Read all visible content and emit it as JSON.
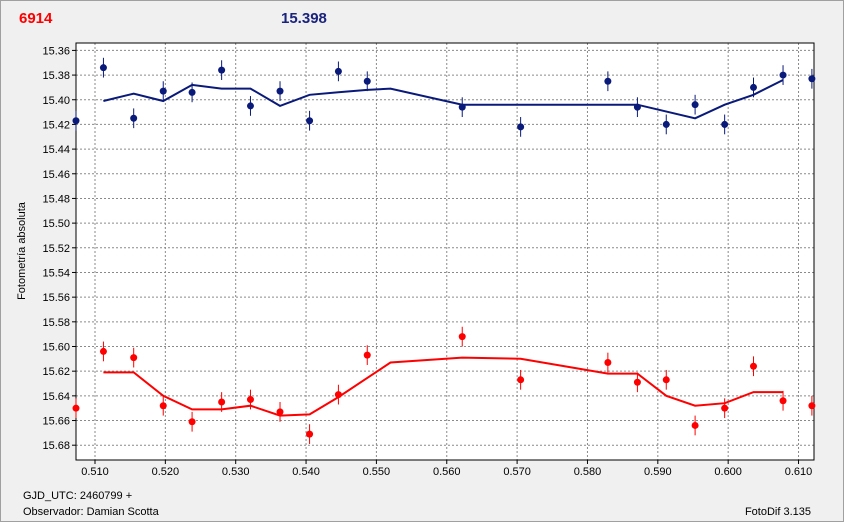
{
  "header": {
    "left_value": "6914",
    "right_value": "15.398"
  },
  "footer": {
    "gjd": "GJD_UTC: 2460799 +",
    "observer": "Observador: Damian Scotta",
    "version": "FotoDif 3.135"
  },
  "colors": {
    "blue": "#0a1a7a",
    "red": "#ff0000",
    "grid": "#8a8a8a"
  },
  "chart_data": {
    "type": "scatter",
    "xlabel": "",
    "ylabel": "Fotometría absoluta",
    "xlim": [
      0.5073,
      0.6122
    ],
    "ylim": [
      15.692,
      15.354
    ],
    "y_inverted": true,
    "grid": true,
    "xticks": [
      0.51,
      0.52,
      0.53,
      0.54,
      0.55,
      0.56,
      0.57,
      0.58,
      0.59,
      0.6,
      0.61
    ],
    "xtick_labels": [
      "0.510",
      "0.520",
      "0.530",
      "0.540",
      "0.550",
      "0.560",
      "0.570",
      "0.580",
      "0.590",
      "0.600",
      "0.610"
    ],
    "yticks": [
      15.36,
      15.38,
      15.4,
      15.42,
      15.44,
      15.46,
      15.48,
      15.5,
      15.52,
      15.54,
      15.56,
      15.58,
      15.6,
      15.62,
      15.64,
      15.66,
      15.68
    ],
    "ytick_labels": [
      "15.36",
      "15.38",
      "15.40",
      "15.42",
      "15.44",
      "15.46",
      "15.48",
      "15.50",
      "15.52",
      "15.54",
      "15.56",
      "15.58",
      "15.60",
      "15.62",
      "15.64",
      "15.66",
      "15.68"
    ],
    "series": [
      {
        "color": "#0a1a7a",
        "points": [
          {
            "x": 0.5073,
            "y": 15.417
          },
          {
            "x": 0.5112,
            "y": 15.374
          },
          {
            "x": 0.5155,
            "y": 15.415
          },
          {
            "x": 0.5197,
            "y": 15.393
          },
          {
            "x": 0.5238,
            "y": 15.394
          },
          {
            "x": 0.528,
            "y": 15.376
          },
          {
            "x": 0.5321,
            "y": 15.405
          },
          {
            "x": 0.5363,
            "y": 15.393
          },
          {
            "x": 0.5405,
            "y": 15.417
          },
          {
            "x": 0.5446,
            "y": 15.377
          },
          {
            "x": 0.5487,
            "y": 15.385
          },
          {
            "x": 0.5622,
            "y": 15.406
          },
          {
            "x": 0.5705,
            "y": 15.422
          },
          {
            "x": 0.5829,
            "y": 15.385
          },
          {
            "x": 0.5871,
            "y": 15.406
          },
          {
            "x": 0.5912,
            "y": 15.42
          },
          {
            "x": 0.5953,
            "y": 15.404
          },
          {
            "x": 0.5995,
            "y": 15.42
          },
          {
            "x": 0.6036,
            "y": 15.39
          },
          {
            "x": 0.6078,
            "y": 15.38
          },
          {
            "x": 0.6119,
            "y": 15.383
          }
        ],
        "errors": [
          0.008,
          0.008,
          0.008,
          0.008,
          0.008,
          0.008,
          0.008,
          0.008,
          0.008,
          0.008,
          0.008,
          0.008,
          0.008,
          0.008,
          0.008,
          0.008,
          0.008,
          0.008,
          0.008,
          0.008,
          0.008
        ],
        "line": [
          {
            "x": 0.5112,
            "y": 15.401
          },
          {
            "x": 0.5155,
            "y": 15.395
          },
          {
            "x": 0.5197,
            "y": 15.401
          },
          {
            "x": 0.5238,
            "y": 15.388
          },
          {
            "x": 0.528,
            "y": 15.391
          },
          {
            "x": 0.5321,
            "y": 15.391
          },
          {
            "x": 0.5363,
            "y": 15.405
          },
          {
            "x": 0.5405,
            "y": 15.396
          },
          {
            "x": 0.5446,
            "y": 15.394
          },
          {
            "x": 0.5487,
            "y": 15.392
          },
          {
            "x": 0.552,
            "y": 15.391
          },
          {
            "x": 0.5622,
            "y": 15.404
          },
          {
            "x": 0.5705,
            "y": 15.404
          },
          {
            "x": 0.5829,
            "y": 15.404
          },
          {
            "x": 0.5871,
            "y": 15.404
          },
          {
            "x": 0.5953,
            "y": 15.415
          },
          {
            "x": 0.5995,
            "y": 15.404
          },
          {
            "x": 0.6036,
            "y": 15.396
          },
          {
            "x": 0.6078,
            "y": 15.384
          }
        ]
      },
      {
        "color": "#ff0000",
        "points": [
          {
            "x": 0.5073,
            "y": 15.65
          },
          {
            "x": 0.5112,
            "y": 15.604
          },
          {
            "x": 0.5155,
            "y": 15.609
          },
          {
            "x": 0.5197,
            "y": 15.648
          },
          {
            "x": 0.5238,
            "y": 15.661
          },
          {
            "x": 0.528,
            "y": 15.645
          },
          {
            "x": 0.5321,
            "y": 15.643
          },
          {
            "x": 0.5363,
            "y": 15.653
          },
          {
            "x": 0.5405,
            "y": 15.671
          },
          {
            "x": 0.5446,
            "y": 15.639
          },
          {
            "x": 0.5487,
            "y": 15.607
          },
          {
            "x": 0.5622,
            "y": 15.592
          },
          {
            "x": 0.5705,
            "y": 15.627
          },
          {
            "x": 0.5829,
            "y": 15.613
          },
          {
            "x": 0.5871,
            "y": 15.629
          },
          {
            "x": 0.5912,
            "y": 15.627
          },
          {
            "x": 0.5953,
            "y": 15.664
          },
          {
            "x": 0.5995,
            "y": 15.65
          },
          {
            "x": 0.6036,
            "y": 15.616
          },
          {
            "x": 0.6078,
            "y": 15.644
          },
          {
            "x": 0.6119,
            "y": 15.648
          }
        ],
        "errors": [
          0.008,
          0.008,
          0.008,
          0.008,
          0.008,
          0.008,
          0.008,
          0.008,
          0.008,
          0.008,
          0.008,
          0.008,
          0.008,
          0.008,
          0.008,
          0.008,
          0.008,
          0.008,
          0.008,
          0.008,
          0.008
        ],
        "line": [
          {
            "x": 0.5112,
            "y": 15.621
          },
          {
            "x": 0.5155,
            "y": 15.621
          },
          {
            "x": 0.5197,
            "y": 15.64
          },
          {
            "x": 0.5238,
            "y": 15.651
          },
          {
            "x": 0.528,
            "y": 15.651
          },
          {
            "x": 0.5321,
            "y": 15.648
          },
          {
            "x": 0.5363,
            "y": 15.656
          },
          {
            "x": 0.5405,
            "y": 15.655
          },
          {
            "x": 0.5446,
            "y": 15.641
          },
          {
            "x": 0.552,
            "y": 15.613
          },
          {
            "x": 0.5622,
            "y": 15.609
          },
          {
            "x": 0.5705,
            "y": 15.61
          },
          {
            "x": 0.5829,
            "y": 15.622
          },
          {
            "x": 0.5871,
            "y": 15.622
          },
          {
            "x": 0.5912,
            "y": 15.64
          },
          {
            "x": 0.5953,
            "y": 15.648
          },
          {
            "x": 0.5995,
            "y": 15.646
          },
          {
            "x": 0.6036,
            "y": 15.637
          },
          {
            "x": 0.6078,
            "y": 15.637
          }
        ]
      }
    ]
  }
}
